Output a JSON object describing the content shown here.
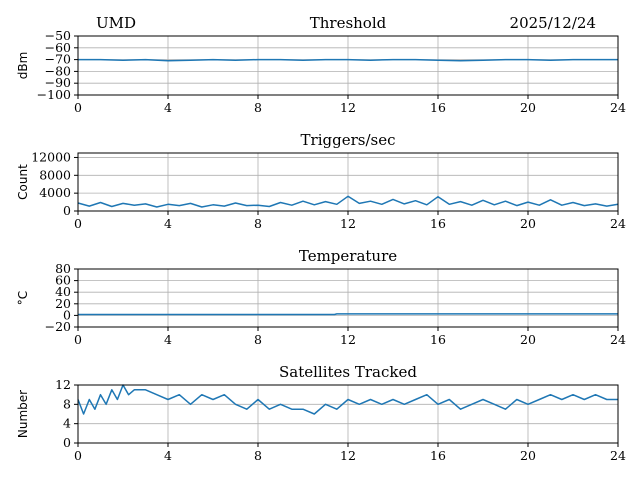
{
  "header": {
    "site": "UMD",
    "date": "2025/12/24"
  },
  "chart_data": [
    {
      "type": "line",
      "title": "Threshold",
      "ylabel": "dBm",
      "xlabel": "",
      "xlim": [
        0,
        24
      ],
      "ylim": [
        -100,
        -50
      ],
      "xticks": [
        0,
        4,
        8,
        12,
        16,
        20,
        24
      ],
      "yticks": [
        -100,
        -90,
        -80,
        -70,
        -60,
        -50
      ],
      "ytick_labels": [
        "−100",
        "−90",
        "−80",
        "−70",
        "−60",
        "−50"
      ],
      "grid": true,
      "series": [
        {
          "color": "#1f77b4",
          "x": [
            0,
            1,
            2,
            3,
            4,
            5,
            6,
            7,
            8,
            9,
            10,
            11,
            12,
            13,
            14,
            15,
            16,
            17,
            18,
            19,
            20,
            21,
            22,
            23,
            24
          ],
          "y": [
            -70,
            -70,
            -70.5,
            -70,
            -71,
            -70.5,
            -70,
            -70.5,
            -70,
            -70,
            -70.5,
            -70,
            -70,
            -70.5,
            -70,
            -70,
            -70.5,
            -71,
            -70.5,
            -70,
            -70,
            -70.5,
            -70,
            -70,
            -70
          ]
        }
      ]
    },
    {
      "type": "line",
      "title": "Triggers/sec",
      "ylabel": "Count",
      "xlabel": "",
      "xlim": [
        0,
        24
      ],
      "ylim": [
        0,
        13000
      ],
      "xticks": [
        0,
        4,
        8,
        12,
        16,
        20,
        24
      ],
      "yticks": [
        0,
        4000,
        8000,
        12000
      ],
      "ytick_labels": [
        "0",
        "4000",
        "8000",
        "12000"
      ],
      "grid": true,
      "series": [
        {
          "color": "#1f77b4",
          "x": [
            0,
            0.5,
            1,
            1.5,
            2,
            2.5,
            3,
            3.5,
            4,
            4.5,
            5,
            5.5,
            6,
            6.5,
            7,
            7.5,
            8,
            8.5,
            9,
            9.5,
            10,
            10.5,
            11,
            11.5,
            12,
            12.5,
            13,
            13.5,
            14,
            14.5,
            15,
            15.5,
            16,
            16.5,
            17,
            17.5,
            18,
            18.5,
            19,
            19.5,
            20,
            20.5,
            21,
            21.5,
            22,
            22.5,
            23,
            23.5,
            24
          ],
          "y": [
            1800,
            1100,
            1900,
            1000,
            1700,
            1300,
            1600,
            900,
            1500,
            1200,
            1700,
            900,
            1400,
            1100,
            1800,
            1200,
            1300,
            1000,
            1900,
            1300,
            2200,
            1400,
            2100,
            1500,
            3300,
            1700,
            2200,
            1500,
            2600,
            1600,
            2300,
            1400,
            3200,
            1500,
            2100,
            1300,
            2400,
            1400,
            2200,
            1200,
            2000,
            1300,
            2500,
            1300,
            1900,
            1200,
            1600,
            1100,
            1500
          ]
        }
      ]
    },
    {
      "type": "line",
      "title": "Temperature",
      "ylabel": "°C",
      "xlabel": "",
      "xlim": [
        0,
        24
      ],
      "ylim": [
        -20,
        80
      ],
      "xticks": [
        0,
        4,
        8,
        12,
        16,
        20,
        24
      ],
      "yticks": [
        -20,
        0,
        20,
        40,
        60,
        80
      ],
      "ytick_labels": [
        "−20",
        "0",
        "20",
        "40",
        "60",
        "80"
      ],
      "grid": true,
      "series": [
        {
          "color": "#1f77b4",
          "x": [
            0,
            4,
            8,
            11.4,
            11.5,
            16,
            20,
            24
          ],
          "y": [
            1.5,
            1.5,
            1.5,
            1.5,
            2.5,
            2.5,
            2.5,
            2.5
          ]
        }
      ]
    },
    {
      "type": "line",
      "title": "Satellites Tracked",
      "ylabel": "Number",
      "xlabel": "",
      "xlim": [
        0,
        24
      ],
      "ylim": [
        0,
        12
      ],
      "xticks": [
        0,
        4,
        8,
        12,
        16,
        20,
        24
      ],
      "yticks": [
        0,
        4,
        8,
        12
      ],
      "ytick_labels": [
        "0",
        "4",
        "8",
        "12"
      ],
      "grid": true,
      "series": [
        {
          "color": "#1f77b4",
          "x": [
            0,
            0.25,
            0.5,
            0.75,
            1,
            1.25,
            1.5,
            1.75,
            2,
            2.25,
            2.5,
            3,
            3.5,
            4,
            4.5,
            5,
            5.5,
            6,
            6.5,
            7,
            7.5,
            8,
            8.5,
            9,
            9.5,
            10,
            10.5,
            11,
            11.5,
            12,
            12.5,
            13,
            13.5,
            14,
            14.5,
            15,
            15.5,
            16,
            16.5,
            17,
            17.5,
            18,
            18.5,
            19,
            19.5,
            20,
            20.5,
            21,
            21.5,
            22,
            22.5,
            23,
            23.5,
            24
          ],
          "y": [
            9,
            6,
            9,
            7,
            10,
            8,
            11,
            9,
            12,
            10,
            11,
            11,
            10,
            9,
            10,
            8,
            10,
            9,
            10,
            8,
            7,
            9,
            7,
            8,
            7,
            7,
            6,
            8,
            7,
            9,
            8,
            9,
            8,
            9,
            8,
            9,
            10,
            8,
            9,
            7,
            8,
            9,
            8,
            7,
            9,
            8,
            9,
            10,
            9,
            10,
            9,
            10,
            9,
            9
          ]
        }
      ]
    }
  ]
}
